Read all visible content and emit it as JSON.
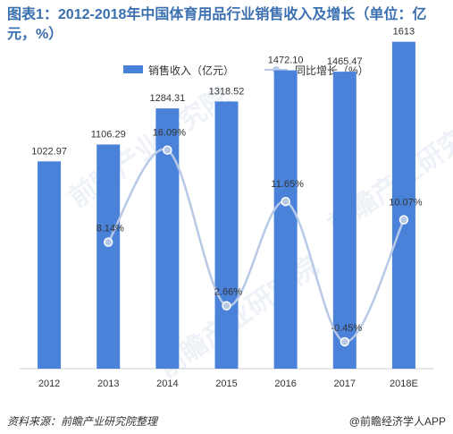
{
  "title": "图表1：2012-2018年中国体育用品行业销售收入及增长（单位：亿元，%）",
  "legend": {
    "bar_label": "销售收入（亿元）",
    "line_label": "同比增长（%）"
  },
  "footer": {
    "source": "资料来源：前瞻产业研究院整理",
    "brand": "@前瞻经济学人APP"
  },
  "watermark": {
    "text": "前瞻产业研究院"
  },
  "colors": {
    "bar": "#4a82d9",
    "line": "#b8c9e6",
    "title": "#3a6fb0"
  },
  "chart_data": {
    "type": "bar",
    "categories": [
      "2012",
      "2013",
      "2014",
      "2015",
      "2016",
      "2017",
      "2018E"
    ],
    "series": [
      {
        "name": "销售收入（亿元）",
        "type": "bar",
        "values": [
          1022.97,
          1106.29,
          1284.31,
          1318.52,
          1472.1,
          1465.47,
          1613
        ],
        "labels": [
          "1022.97",
          "1106.29",
          "1284.31",
          "1318.52",
          "1472.10",
          "1465.47",
          "1613"
        ]
      },
      {
        "name": "同比增长（%）",
        "type": "line",
        "axis": "secondary",
        "values": [
          null,
          8.14,
          16.09,
          2.66,
          11.65,
          -0.45,
          10.07
        ],
        "labels": [
          "",
          "8.14%",
          "16.09%",
          "2.66%",
          "11.65%",
          "-0.45%",
          "10.07%"
        ]
      }
    ],
    "ylim": [
      0,
      1700
    ],
    "y2lim": [
      -3,
      19
    ],
    "grid": false,
    "legend_position": "top"
  }
}
